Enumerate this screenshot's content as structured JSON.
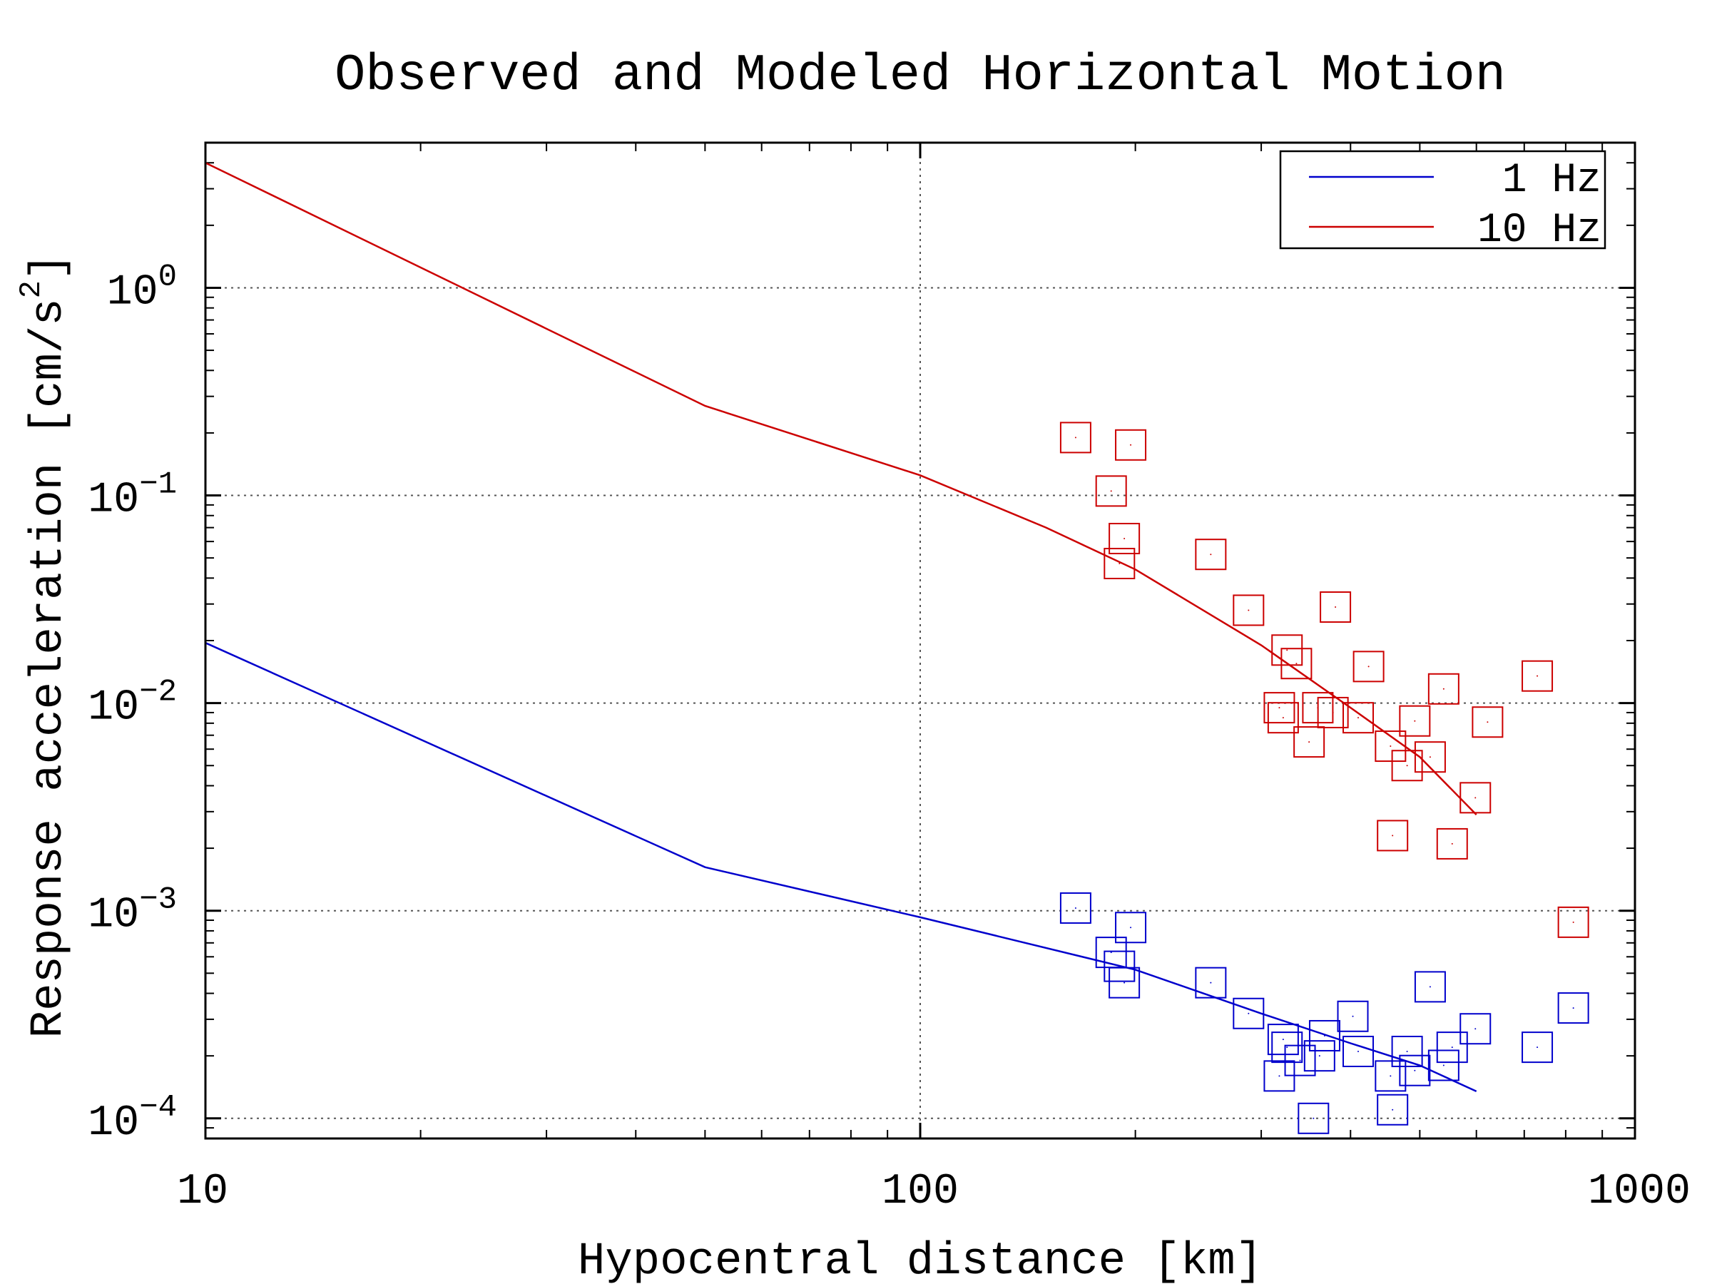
{
  "chart_data": {
    "type": "scatter",
    "title": "Observed and Modeled Horizontal Motion",
    "xlabel": "Hypocentral distance [km]",
    "ylabel": "Response acceleration [cm/s",
    "ylabel_superscript": "2",
    "ylabel_suffix": "]",
    "x_scale": "log",
    "y_scale": "log",
    "xlim": [
      10,
      1000
    ],
    "ylim": [
      8e-05,
      5
    ],
    "grid": true,
    "legend_position": "top-right",
    "x_ticks": [
      {
        "value": 10,
        "label": "10"
      },
      {
        "value": 100,
        "label": "100"
      },
      {
        "value": 1000,
        "label": "1000"
      }
    ],
    "y_ticks": [
      {
        "value": 1,
        "base": "10",
        "exp": "0"
      },
      {
        "value": 0.1,
        "base": "10",
        "exp": "−1"
      },
      {
        "value": 0.01,
        "base": "10",
        "exp": "−2"
      },
      {
        "value": 0.001,
        "base": "10",
        "exp": "−3"
      },
      {
        "value": 0.0001,
        "base": "10",
        "exp": "−4"
      }
    ],
    "series": [
      {
        "name": "1 Hz",
        "color": "#0000cc",
        "model_line": [
          [
            10,
            0.0195
          ],
          [
            50,
            0.00162
          ],
          [
            100,
            0.00093
          ],
          [
            200,
            0.00052
          ],
          [
            300,
            0.00032
          ],
          [
            400,
            0.00023
          ],
          [
            500,
            0.00018
          ],
          [
            600,
            0.000135
          ]
        ],
        "observed": [
          [
            165,
            0.00103
          ],
          [
            185,
            0.00063
          ],
          [
            190,
            0.00054
          ],
          [
            193,
            0.00045
          ],
          [
            197,
            0.00083
          ],
          [
            255,
            0.00045
          ],
          [
            288,
            0.00032
          ],
          [
            318,
            0.00016
          ],
          [
            322,
            0.00024
          ],
          [
            326,
            0.00022
          ],
          [
            340,
            0.00019
          ],
          [
            355,
            0.0001
          ],
          [
            362,
            0.0002
          ],
          [
            368,
            0.00025
          ],
          [
            403,
            0.00031
          ],
          [
            410,
            0.00021
          ],
          [
            455,
            0.00016
          ],
          [
            458,
            0.00011
          ],
          [
            480,
            0.00021
          ],
          [
            492,
            0.00017
          ],
          [
            517,
            0.00043
          ],
          [
            540,
            0.00018
          ],
          [
            555,
            0.00022
          ],
          [
            598,
            0.00027
          ],
          [
            730,
            0.00022
          ],
          [
            820,
            0.00034
          ]
        ]
      },
      {
        "name": "10 Hz",
        "color": "#cc0000",
        "model_line": [
          [
            10,
            4.0
          ],
          [
            50,
            0.27
          ],
          [
            100,
            0.125
          ],
          [
            150,
            0.07
          ],
          [
            200,
            0.044
          ],
          [
            300,
            0.019
          ],
          [
            400,
            0.0095
          ],
          [
            500,
            0.0055
          ],
          [
            600,
            0.0029
          ]
        ],
        "observed": [
          [
            165,
            0.19
          ],
          [
            185,
            0.105
          ],
          [
            190,
            0.047
          ],
          [
            193,
            0.062
          ],
          [
            197,
            0.175
          ],
          [
            255,
            0.052
          ],
          [
            288,
            0.028
          ],
          [
            318,
            0.0095
          ],
          [
            322,
            0.0085
          ],
          [
            326,
            0.018
          ],
          [
            336,
            0.0155
          ],
          [
            350,
            0.0065
          ],
          [
            360,
            0.0095
          ],
          [
            378,
            0.009
          ],
          [
            381,
            0.029
          ],
          [
            410,
            0.0085
          ],
          [
            424,
            0.015
          ],
          [
            455,
            0.0062
          ],
          [
            458,
            0.0023
          ],
          [
            480,
            0.005
          ],
          [
            492,
            0.0082
          ],
          [
            517,
            0.0055
          ],
          [
            540,
            0.0117
          ],
          [
            555,
            0.0021
          ],
          [
            598,
            0.0035
          ],
          [
            622,
            0.0081
          ],
          [
            730,
            0.0135
          ],
          [
            820,
            0.00088
          ]
        ]
      }
    ]
  }
}
